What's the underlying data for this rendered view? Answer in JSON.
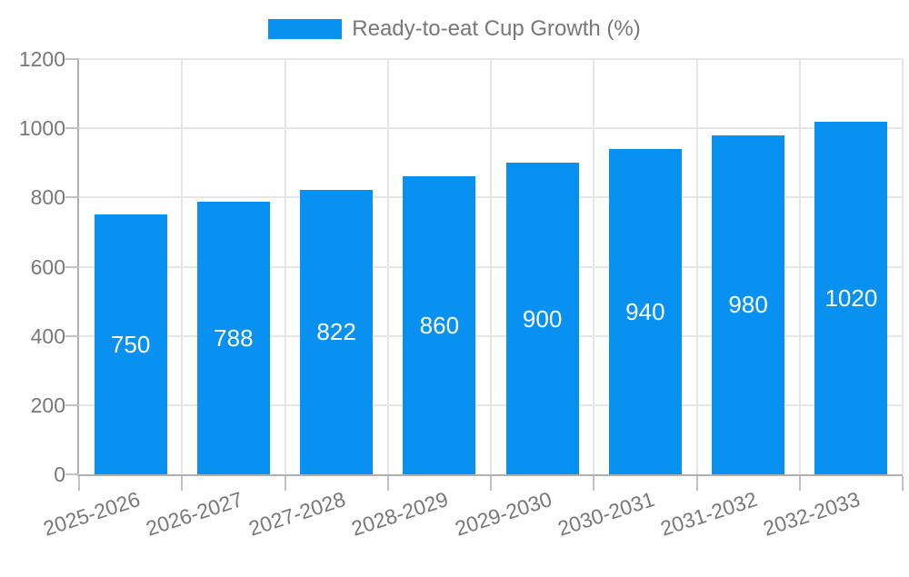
{
  "chart_data": {
    "type": "bar",
    "title": "Ready-to-eat Cup Growth (%)",
    "legend": {
      "label": "Ready-to-eat Cup Growth (%)",
      "position": "top-center"
    },
    "categories": [
      "2025-2026",
      "2026-2027",
      "2027-2028",
      "2028-2029",
      "2029-2030",
      "2030-2031",
      "2031-2032",
      "2032-2033"
    ],
    "values": [
      750,
      788,
      822,
      860,
      900,
      940,
      980,
      1020
    ],
    "xlabel": "",
    "ylabel": "",
    "ylim": [
      0,
      1200
    ],
    "y_ticks": [
      0,
      200,
      400,
      600,
      800,
      1000,
      1200
    ],
    "grid": true,
    "value_labels": "inside-center",
    "x_label_rotation_deg": -18,
    "colors": {
      "bar": "#0991f2",
      "value_text": "#ffffff",
      "grid": "#e6e6e6",
      "axis": "#b0b0b0",
      "tick": "#c2c2c2",
      "label": "#787878",
      "background": "#ffffff"
    }
  }
}
